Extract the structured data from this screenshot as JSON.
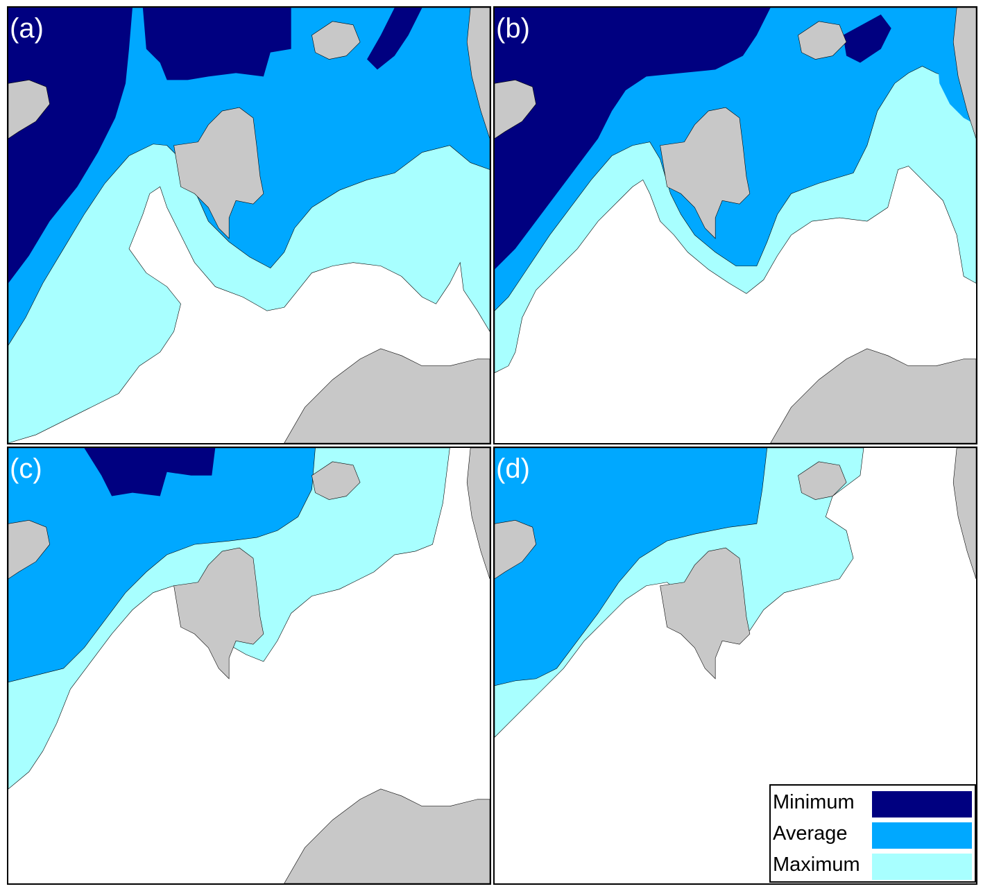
{
  "colors": {
    "minimum": "#000080",
    "average": "#00a8ff",
    "maximum": "#a8ffff",
    "land": "#c8c8c8",
    "open_water": "#ffffff",
    "coastline": "#000000"
  },
  "panels": [
    {
      "label": "(a)"
    },
    {
      "label": "(b)"
    },
    {
      "label": "(c)"
    },
    {
      "label": "(d)"
    }
  ],
  "legend": {
    "items": [
      {
        "label": "Minimum",
        "color": "#000080"
      },
      {
        "label": "Average",
        "color": "#00a8ff"
      },
      {
        "label": "Maximum",
        "color": "#a8ffff"
      }
    ]
  }
}
